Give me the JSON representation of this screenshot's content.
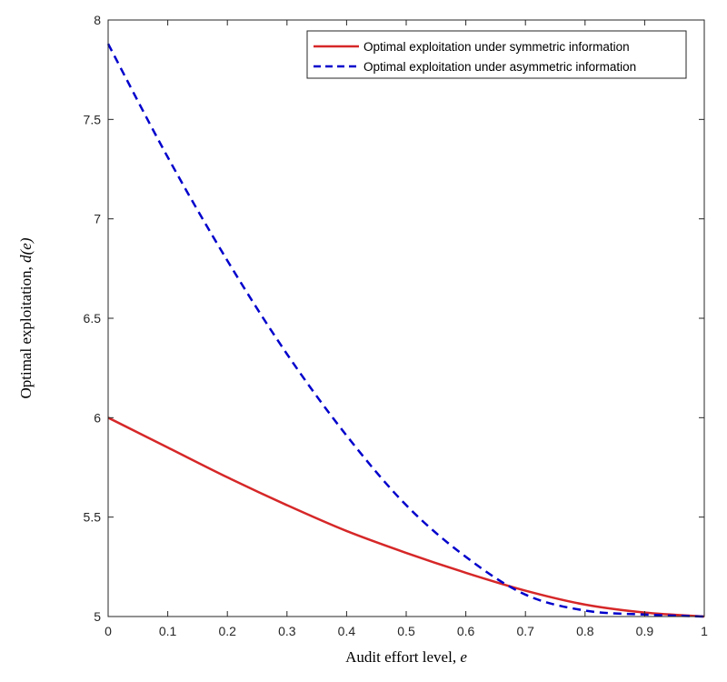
{
  "chart_data": {
    "type": "line",
    "title": "",
    "xlabel": "Audit effort level, e",
    "ylabel": "Optimal exploitation, d(e)",
    "xlabel_prefix": "Audit effort level, ",
    "xlabel_var": "e",
    "ylabel_prefix": "Optimal exploitation, ",
    "ylabel_var": "d(e)",
    "xlim": [
      0,
      1
    ],
    "ylim": [
      5,
      8
    ],
    "xticks": [
      "0",
      "0.1",
      "0.2",
      "0.3",
      "0.4",
      "0.5",
      "0.6",
      "0.7",
      "0.8",
      "0.9",
      "1"
    ],
    "yticks": [
      "5",
      "5.5",
      "6",
      "6.5",
      "7",
      "7.5",
      "8"
    ],
    "grid": false,
    "legend_position": "top-right",
    "x": [
      0,
      0.1,
      0.2,
      0.3,
      0.4,
      0.5,
      0.6,
      0.7,
      0.8,
      0.9,
      1.0
    ],
    "series": [
      {
        "name": "Optimal exploitation under symmetric information",
        "color": "#d62728",
        "style": "solid",
        "values": [
          6.0,
          5.85,
          5.7,
          5.56,
          5.43,
          5.32,
          5.22,
          5.13,
          5.06,
          5.02,
          5.0
        ]
      },
      {
        "name": "Optimal exploitation under asymmetric information",
        "color": "#0000cc",
        "style": "dashed",
        "values": [
          7.88,
          7.31,
          6.79,
          6.32,
          5.91,
          5.56,
          5.3,
          5.11,
          5.03,
          5.01,
          5.0
        ]
      }
    ]
  }
}
